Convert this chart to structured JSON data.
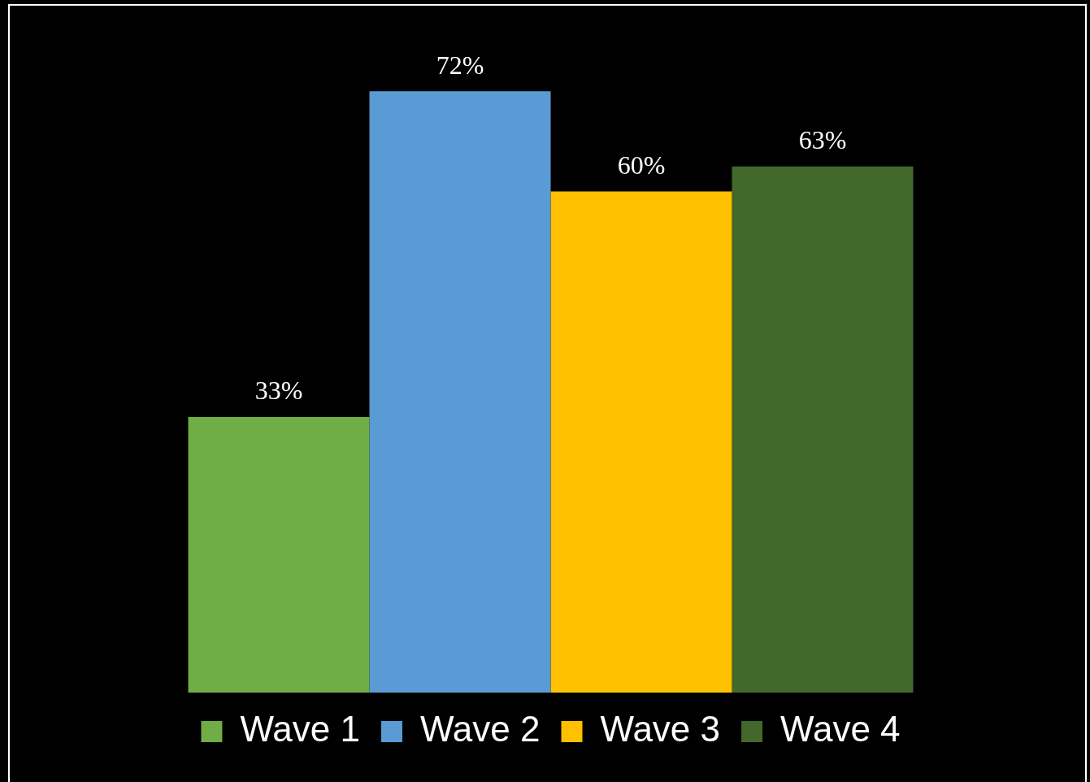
{
  "chart_data": {
    "type": "bar",
    "categories": [
      null
    ],
    "series": [
      {
        "name": "Wave 1",
        "color": "#70ad47",
        "values": [
          33
        ],
        "value_labels": [
          "33%"
        ]
      },
      {
        "name": "Wave 2",
        "color": "#5b9bd5",
        "values": [
          72
        ],
        "value_labels": [
          "72%"
        ]
      },
      {
        "name": "Wave 3",
        "color": "#ffc000",
        "values": [
          60
        ],
        "value_labels": [
          "60%"
        ]
      },
      {
        "name": "Wave 4",
        "color": "#43682b",
        "values": [
          63
        ],
        "value_labels": [
          "63%"
        ]
      }
    ],
    "legend": "bottom",
    "grid": false,
    "tick_labels": false
  }
}
